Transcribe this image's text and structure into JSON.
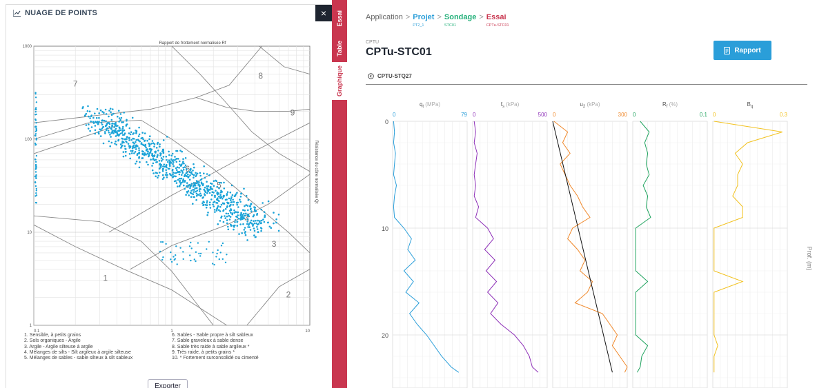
{
  "left_panel": {
    "title": "NUAGE DE POINTS",
    "title_icon": "chart-icon",
    "close_label": "×",
    "export_label": "Exporter"
  },
  "scatter": {
    "chart_data": {
      "type": "scatter",
      "title": "Rapport de frottement normalisée Rf",
      "ylabel": "Résistance du cône normalisée Qt",
      "xscale": "log",
      "yscale": "log",
      "xlim": [
        0.1,
        10
      ],
      "ylim": [
        1,
        1000
      ],
      "x_ticks": [
        "0.1",
        "1",
        "10"
      ],
      "y_ticks": [
        "1",
        "10",
        "100",
        "1000"
      ],
      "zone_labels": [
        "1",
        "2",
        "3",
        "4",
        "5",
        "6",
        "7",
        "8",
        "9"
      ],
      "point_color": "#1aa3d8",
      "grid": true
    },
    "legend_left": [
      "1. Sensible, à petits grains",
      "2. Sols organiques - Argile",
      "3. Argile - Argile silteuse à argile",
      "4. Mélanges de silts - Silt argileux à argile silteuse",
      "5. Mélanges de sables - sable silteux à silt sableux"
    ],
    "legend_right": [
      "6. Sables - Sable propre à silt sableux",
      "7. Sable graveleux à sable dense",
      "8. Sable très raide à sable argileux *",
      "9. Très raide, à petits grains *",
      "10. * Fortement surconsolidé ou cimenté"
    ]
  },
  "tabs": [
    {
      "label": "Essai"
    },
    {
      "label": "Table"
    },
    {
      "label": "Graphique",
      "active": true
    }
  ],
  "breadcrumb": {
    "root": "Application",
    "projet": "Projet",
    "projet_sub": "PT2_1",
    "sondage": "Sondage",
    "sondage_sub": "STC01",
    "essai": "Essai",
    "essai_sub": "CPTu-STC01",
    "separator": ">"
  },
  "essai": {
    "type": "CPTU",
    "name": "CPTu-STC01",
    "sub_essai": "CPTU-STQ27",
    "report_label": "Rapport"
  },
  "profile": {
    "chart_data": {
      "type": "line",
      "ylabel": "Prof. (m)",
      "y_ticks": [
        "0",
        "10",
        "20"
      ],
      "ylim": [
        0,
        25
      ],
      "tracks": [
        {
          "name": "q",
          "sub": "t",
          "unit": "(MPa)",
          "min": "0",
          "max": "79",
          "color": "#2a9ed9"
        },
        {
          "name": "f",
          "sub": "s",
          "unit": "(kPa)",
          "min": "0",
          "max": "500",
          "color": "#8e30b8"
        },
        {
          "name": "u",
          "sub": "2",
          "unit": "(kPa)",
          "min": "0",
          "max": "300",
          "color": "#f0882a"
        },
        {
          "name": "R",
          "sub": "f",
          "unit": "(%)",
          "min": "0",
          "max": "0.1",
          "color": "#1fa35e"
        },
        {
          "name": "B",
          "sub": "q",
          "unit": "",
          "min": "0",
          "max": "0.3",
          "color": "#f2c220"
        }
      ],
      "depth": [
        0,
        1,
        2,
        3,
        4,
        5,
        6,
        7,
        8,
        9,
        10,
        11,
        12,
        13,
        14,
        15,
        16,
        17,
        18,
        19,
        20,
        21,
        22,
        23,
        23.5
      ],
      "qt": [
        1,
        2,
        1,
        3,
        2,
        1,
        4,
        2,
        1,
        2,
        12,
        20,
        16,
        24,
        12,
        22,
        14,
        28,
        18,
        26,
        36,
        44,
        52,
        62,
        70
      ],
      "fs": [
        10,
        20,
        10,
        30,
        20,
        10,
        20,
        10,
        40,
        20,
        100,
        140,
        80,
        150,
        90,
        160,
        100,
        170,
        120,
        190,
        280,
        340,
        380,
        400,
        440
      ],
      "u2": [
        5,
        60,
        40,
        70,
        30,
        50,
        70,
        100,
        120,
        150,
        80,
        60,
        100,
        130,
        110,
        160,
        140,
        90,
        200,
        230,
        260,
        240,
        270,
        300,
        290
      ],
      "rf": [
        0.01,
        0.022,
        0.016,
        0.02,
        0.018,
        0.022,
        0.014,
        0.02,
        0.018,
        0.024,
        0.004,
        0.004,
        0.004,
        0.004,
        0.004,
        0.02,
        0.004,
        0.004,
        0.004,
        0.004,
        0.004,
        0.02,
        0.012,
        0.01,
        0.006
      ],
      "bq": [
        0.005,
        0.28,
        0.14,
        0.09,
        0.12,
        0.1,
        0.1,
        0.08,
        0.12,
        0.12,
        0.005,
        0.005,
        0.005,
        0.005,
        0.005,
        0.12,
        0.005,
        0.005,
        0.005,
        0.005,
        0.005,
        0.02,
        0.005,
        0.005,
        0.005
      ]
    }
  }
}
